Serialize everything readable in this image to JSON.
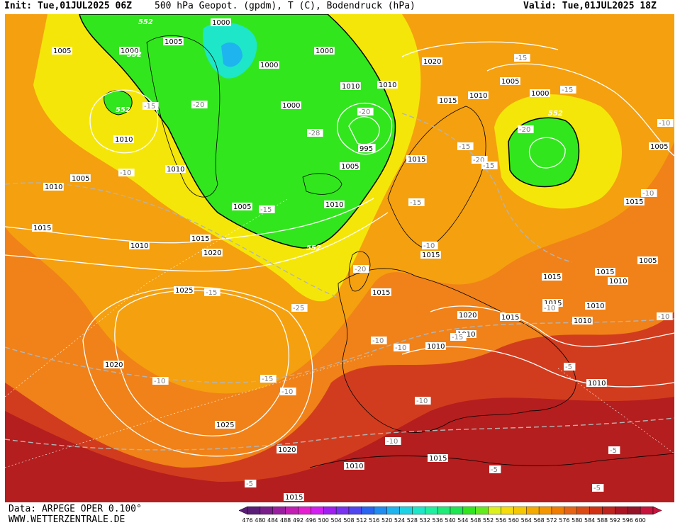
{
  "header": {
    "init": "Init: Tue,01JUL2025 06Z",
    "title": "500 hPa Geopot. (gpdm), T (C), Bodendruck (hPa)",
    "valid": "Valid: Tue,01JUL2025 18Z"
  },
  "footer": {
    "data_source": "Data: ARPEGE OPER 0.100°",
    "website": "WWW.WETTERZENTRALE.DE"
  },
  "colorbar": {
    "ticks": [
      "476",
      "480",
      "484",
      "488",
      "492",
      "496",
      "500",
      "504",
      "508",
      "512",
      "516",
      "520",
      "524",
      "528",
      "532",
      "536",
      "540",
      "544",
      "548",
      "552",
      "556",
      "560",
      "564",
      "568",
      "572",
      "576",
      "580",
      "584",
      "588",
      "592",
      "596",
      "600"
    ],
    "colors": [
      "#5a1e78",
      "#7a1e8c",
      "#9a1ea0",
      "#c21eb4",
      "#e61ed2",
      "#d21ef0",
      "#a01ef0",
      "#7832f0",
      "#5046f0",
      "#2864f0",
      "#1e8cf0",
      "#1eb4f0",
      "#1ed2e6",
      "#1ee6c8",
      "#1ef0a0",
      "#1eeb78",
      "#1ee650",
      "#32e61e",
      "#64eb1e",
      "#dcf01e",
      "#f5dc0a",
      "#f5c800",
      "#f5aa00",
      "#f59600",
      "#f07d00",
      "#e66414",
      "#dc4b14",
      "#d23214",
      "#be231e",
      "#aa1423",
      "#961428",
      "#c8143c"
    ]
  },
  "map": {
    "colors": {
      "ocean_south": "#d7321e",
      "warm": "#f08219",
      "yellow": "#f5d20f",
      "green": "#32e61e",
      "cyan": "#1ee6c8",
      "deep_red": "#b41e1e"
    },
    "pressure_labels": [
      "1005",
      "1000",
      "1000",
      "1000",
      "1000",
      "1005",
      "1020",
      "1010",
      "1005",
      "1005",
      "1000",
      "1015",
      "1010",
      "1015",
      "1010",
      "1005",
      "1010",
      "995",
      "1000",
      "1010",
      "1010",
      "1005",
      "1005",
      "1015",
      "1010",
      "1015",
      "1020",
      "1025",
      "1020",
      "1025",
      "1020",
      "1015",
      "1015",
      "1020",
      "1015",
      "1015",
      "1010",
      "1015",
      "1015",
      "1015",
      "1010",
      "1010",
      "1010",
      "1010",
      "1010",
      "1015",
      "1010",
      "995",
      "1010",
      "1005",
      "1015"
    ],
    "temp_labels": [
      "-20",
      "-15",
      "-20",
      "-28",
      "-20",
      "-15",
      "-20",
      "-15",
      "-15",
      "-15",
      "-15",
      "-15",
      "-10",
      "-10",
      "-10",
      "-10",
      "-20",
      "-25",
      "-15",
      "-10",
      "-10",
      "-15",
      "-10",
      "-10",
      "-10",
      "-10",
      "-15",
      "-5",
      "-5",
      "-5",
      "-5",
      "-5",
      "-10",
      "-10"
    ],
    "height_labels": [
      "552",
      "552",
      "552",
      "552",
      "552"
    ]
  }
}
